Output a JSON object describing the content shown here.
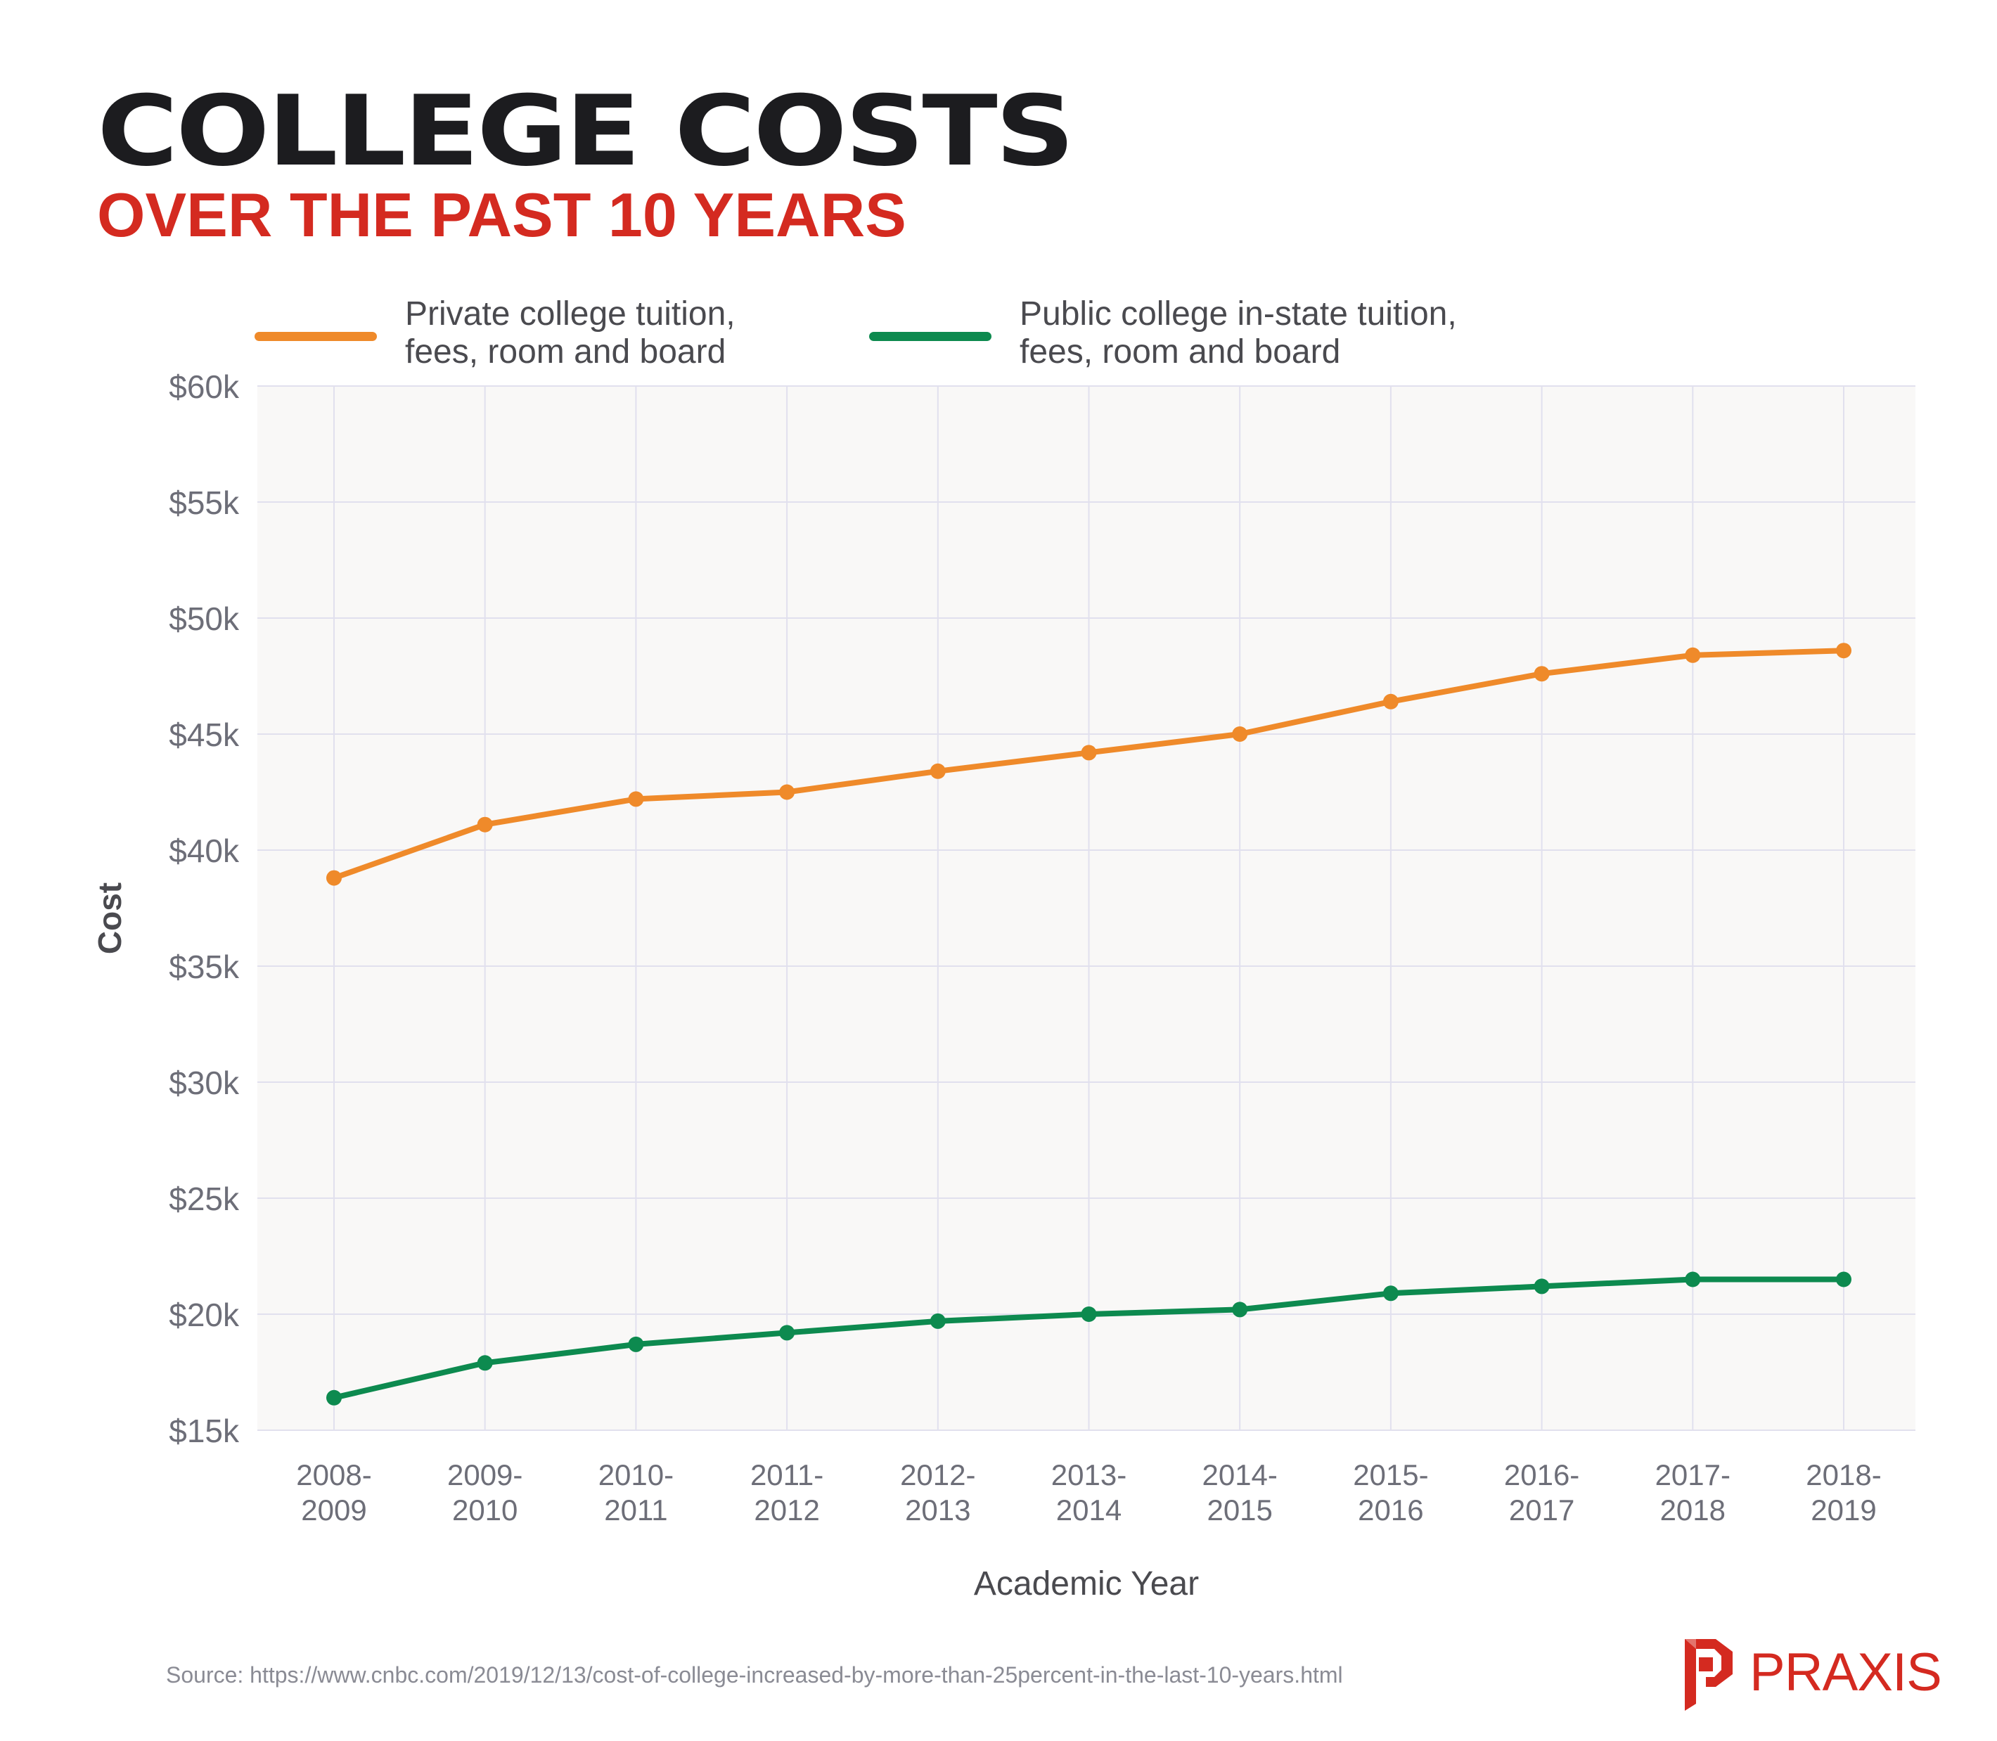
{
  "header": {
    "title": "COLLEGE COSTS",
    "subtitle": "OVER THE PAST 10 YEARS"
  },
  "legend": [
    {
      "line1": "Private college tuition,",
      "line2": "fees, room and board",
      "color": "#ef8a2a"
    },
    {
      "line1": "Public college in-state tuition,",
      "line2": "fees, room and board",
      "color": "#0d8a4f"
    }
  ],
  "chart_data": {
    "type": "line",
    "xlabel": "Academic Year",
    "ylabel": "Cost",
    "ylim": [
      15000,
      60000
    ],
    "y_ticks": [
      {
        "value": 15000,
        "label": "$15k"
      },
      {
        "value": 20000,
        "label": "$20k"
      },
      {
        "value": 25000,
        "label": "$25k"
      },
      {
        "value": 30000,
        "label": "$30k"
      },
      {
        "value": 35000,
        "label": "$35k"
      },
      {
        "value": 40000,
        "label": "$40k"
      },
      {
        "value": 45000,
        "label": "$45k"
      },
      {
        "value": 50000,
        "label": "$50k"
      },
      {
        "value": 55000,
        "label": "$55k"
      },
      {
        "value": 60000,
        "label": "$60k"
      }
    ],
    "categories": [
      [
        "2008-",
        "2009"
      ],
      [
        "2009-",
        "2010"
      ],
      [
        "2010-",
        "2011"
      ],
      [
        "2011-",
        "2012"
      ],
      [
        "2012-",
        "2013"
      ],
      [
        "2013-",
        "2014"
      ],
      [
        "2014-",
        "2015"
      ],
      [
        "2015-",
        "2016"
      ],
      [
        "2016-",
        "2017"
      ],
      [
        "2017-",
        "2018"
      ],
      [
        "2018-",
        "2019"
      ]
    ],
    "grid": true,
    "legend_position": "top",
    "plot_background": "#f9f8f7",
    "grid_color": "#e1e0ee",
    "series": [
      {
        "name": "Private college tuition, fees, room and board",
        "color": "#ef8a2a",
        "values": [
          38800,
          41100,
          42200,
          42500,
          43400,
          44200,
          45000,
          46400,
          47600,
          48400,
          48600
        ]
      },
      {
        "name": "Public college in-state tuition, fees, room and board",
        "color": "#0d8a4f",
        "values": [
          16400,
          17900,
          18700,
          19200,
          19700,
          20000,
          20200,
          20900,
          21200,
          21500,
          21500
        ]
      }
    ]
  },
  "footer": {
    "source": "Source: https://www.cnbc.com/2019/12/13/cost-of-college-increased-by-more-than-25percent-in-the-last-10-years.html",
    "brand": "PRAXIS",
    "brand_color": "#d42a20"
  }
}
